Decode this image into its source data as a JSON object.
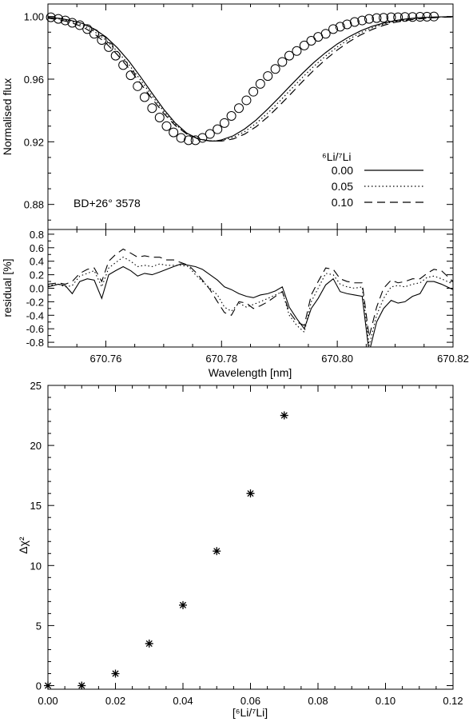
{
  "chart_data": [
    {
      "type": "scatter",
      "object_label": "BD+26° 3578",
      "ylabel": "Normalised flux",
      "xlabel": "",
      "xlim": [
        670.75,
        670.82
      ],
      "ylim": [
        0.864,
        1.008
      ],
      "yticks": [
        "0.88",
        "0.92",
        "0.96",
        "1.00"
      ],
      "xticks": [
        "670.76",
        "670.78",
        "670.80",
        "670.82"
      ],
      "show_x_tick_labels": false,
      "legend_placement": "middle-right",
      "legend_title": "⁶Li/⁷Li",
      "observed": {
        "x": [
          670.7505,
          670.7518,
          670.753,
          670.7542,
          670.7555,
          670.7568,
          670.758,
          670.7593,
          670.7605,
          670.7617,
          670.763,
          670.7643,
          670.7655,
          670.7667,
          670.768,
          670.7693,
          670.7705,
          670.7717,
          670.773,
          670.7743,
          670.7755,
          670.7767,
          670.778,
          670.7793,
          670.7805,
          670.7817,
          670.783,
          670.7843,
          670.7855,
          670.7867,
          670.788,
          670.7893,
          670.7905,
          670.7917,
          670.793,
          670.7943,
          670.7955,
          670.7967,
          670.798,
          670.7993,
          670.8005,
          670.8017,
          670.803,
          670.8043,
          670.8055,
          670.8068,
          670.808,
          670.8093,
          670.8105,
          670.8117,
          670.813,
          670.8143,
          670.8155,
          670.8167
        ],
        "y": [
          0.9995,
          0.9985,
          0.9975,
          0.996,
          0.9945,
          0.992,
          0.989,
          0.985,
          0.9805,
          0.975,
          0.969,
          0.9625,
          0.9555,
          0.9485,
          0.9415,
          0.9355,
          0.93,
          0.926,
          0.9225,
          0.921,
          0.921,
          0.9225,
          0.925,
          0.928,
          0.932,
          0.9365,
          0.9415,
          0.9465,
          0.952,
          0.957,
          0.962,
          0.9665,
          0.971,
          0.975,
          0.978,
          0.9815,
          0.9845,
          0.987,
          0.989,
          0.992,
          0.9935,
          0.995,
          0.9965,
          0.9975,
          0.9985,
          0.999,
          0.9992,
          0.9995,
          0.9995,
          0.9997,
          0.9997,
          0.9998,
          0.9999,
          1.0
        ]
      },
      "series": [
        {
          "name": "0.00",
          "style": "solid",
          "x": [
            670.75,
            670.752,
            670.754,
            670.756,
            670.758,
            670.76,
            670.762,
            670.764,
            670.766,
            670.768,
            670.77,
            670.772,
            670.774,
            670.776,
            670.778,
            670.779,
            670.78,
            670.782,
            670.784,
            670.786,
            670.788,
            670.79,
            670.792,
            670.794,
            670.796,
            670.798,
            670.8,
            670.802,
            670.804,
            670.806,
            670.808,
            670.81,
            670.812,
            670.814,
            670.816,
            670.818,
            670.82
          ],
          "y": [
            0.9995,
            0.9988,
            0.9975,
            0.9955,
            0.992,
            0.987,
            0.98,
            0.9715,
            0.9615,
            0.951,
            0.9408,
            0.932,
            0.9255,
            0.9218,
            0.9205,
            0.9205,
            0.9212,
            0.9238,
            0.9282,
            0.934,
            0.941,
            0.9485,
            0.9562,
            0.9638,
            0.9708,
            0.977,
            0.9825,
            0.987,
            0.9908,
            0.9937,
            0.9958,
            0.9974,
            0.9985,
            0.9992,
            0.9996,
            0.9998,
            0.9999
          ]
        },
        {
          "name": "0.05",
          "style": "dotted",
          "x": [
            670.75,
            670.752,
            670.754,
            670.756,
            670.758,
            670.76,
            670.762,
            670.764,
            670.766,
            670.768,
            670.77,
            670.772,
            670.774,
            670.776,
            670.778,
            670.779,
            670.78,
            670.782,
            670.784,
            670.786,
            670.788,
            670.79,
            670.792,
            670.794,
            670.796,
            670.798,
            670.8,
            670.802,
            670.804,
            670.806,
            670.808,
            670.81,
            670.812,
            670.814,
            670.816,
            670.818,
            670.82
          ],
          "y": [
            0.9992,
            0.9984,
            0.9969,
            0.9945,
            0.9905,
            0.985,
            0.9778,
            0.9692,
            0.9595,
            0.9493,
            0.9395,
            0.9312,
            0.9252,
            0.9218,
            0.9206,
            0.9205,
            0.9208,
            0.9228,
            0.9265,
            0.9318,
            0.9384,
            0.9458,
            0.9535,
            0.9612,
            0.9684,
            0.9748,
            0.9806,
            0.9855,
            0.9896,
            0.9928,
            0.9952,
            0.9969,
            0.9981,
            0.9989,
            0.9994,
            0.9997,
            0.9998
          ]
        },
        {
          "name": "0.10",
          "style": "dashed",
          "x": [
            670.75,
            670.752,
            670.754,
            670.756,
            670.758,
            670.76,
            670.762,
            670.764,
            670.766,
            670.768,
            670.77,
            670.772,
            670.774,
            670.776,
            670.778,
            670.779,
            670.78,
            670.782,
            670.784,
            670.786,
            670.788,
            670.79,
            670.792,
            670.794,
            670.796,
            670.798,
            670.8,
            670.802,
            670.804,
            670.806,
            670.808,
            670.81,
            670.812,
            670.814,
            670.816,
            670.818,
            670.82
          ],
          "y": [
            0.9989,
            0.9979,
            0.9962,
            0.9934,
            0.989,
            0.9831,
            0.9756,
            0.9669,
            0.9573,
            0.9475,
            0.9382,
            0.9304,
            0.9249,
            0.9218,
            0.9206,
            0.9205,
            0.9205,
            0.9218,
            0.9249,
            0.9297,
            0.9359,
            0.9431,
            0.9507,
            0.9585,
            0.9659,
            0.9726,
            0.9786,
            0.9838,
            0.9882,
            0.9917,
            0.9944,
            0.9963,
            0.9976,
            0.9985,
            0.9991,
            0.9995,
            0.9997
          ]
        }
      ]
    },
    {
      "type": "line",
      "ylabel": "residual [%]",
      "xlabel": "Wavelength [nm]",
      "xlim": [
        670.75,
        670.82
      ],
      "ylim": [
        -0.87,
        0.87
      ],
      "yticks": [
        "-0.8",
        "-0.6",
        "-0.4",
        "-0.2",
        "0.0",
        "0.2",
        "0.4",
        "0.6",
        "0.8"
      ],
      "xticks": [
        "670.76",
        "670.78",
        "670.80",
        "670.82"
      ],
      "series": [
        {
          "name": "0.00",
          "style": "solid",
          "x": [
            670.75,
            670.7518,
            670.753,
            670.7542,
            670.7555,
            670.7568,
            670.758,
            670.7593,
            670.7605,
            670.7617,
            670.763,
            670.7643,
            670.7655,
            670.7667,
            670.768,
            670.7693,
            670.7705,
            670.7717,
            670.773,
            670.7743,
            670.7755,
            670.7767,
            670.778,
            670.7793,
            670.7805,
            670.7817,
            670.783,
            670.7843,
            670.7855,
            670.7867,
            670.788,
            670.7893,
            670.7905,
            670.7917,
            670.793,
            670.7943,
            670.7955,
            670.7967,
            670.798,
            670.7993,
            670.8005,
            670.8017,
            670.803,
            670.8043,
            670.8055,
            670.8068,
            670.808,
            670.8093,
            670.8105,
            670.8117,
            670.813,
            670.8143,
            670.8155,
            670.8167,
            670.818,
            670.82
          ],
          "y": [
            0.02,
            0.06,
            0.04,
            -0.08,
            0.1,
            0.14,
            0.12,
            -0.15,
            0.2,
            0.26,
            0.32,
            0.26,
            0.18,
            0.22,
            0.2,
            0.24,
            0.28,
            0.32,
            0.36,
            0.34,
            0.32,
            0.28,
            0.2,
            0.12,
            0.02,
            -0.02,
            -0.08,
            -0.12,
            -0.14,
            -0.1,
            -0.08,
            -0.04,
            0.02,
            -0.28,
            -0.45,
            -0.6,
            -0.3,
            -0.15,
            0.05,
            0.14,
            -0.05,
            -0.08,
            -0.1,
            -0.12,
            -0.95,
            -0.5,
            -0.3,
            -0.18,
            -0.22,
            -0.2,
            -0.12,
            -0.08,
            0.1,
            0.1,
            0.06,
            -0.02
          ]
        },
        {
          "name": "0.05",
          "style": "dotted",
          "x": [
            670.75,
            670.7518,
            670.753,
            670.7542,
            670.7555,
            670.7568,
            670.758,
            670.7593,
            670.7605,
            670.7617,
            670.763,
            670.7643,
            670.7655,
            670.7667,
            670.768,
            670.7693,
            670.7705,
            670.7717,
            670.773,
            670.7743,
            670.7755,
            670.7767,
            670.778,
            670.7793,
            670.7805,
            670.7817,
            670.783,
            670.7843,
            670.7855,
            670.7867,
            670.788,
            670.7893,
            670.7905,
            670.7917,
            670.793,
            670.7943,
            670.7955,
            670.7967,
            670.798,
            670.7993,
            670.8005,
            670.8017,
            670.803,
            670.8043,
            670.8055,
            670.8068,
            670.808,
            670.8093,
            670.8105,
            670.8117,
            670.813,
            670.8143,
            670.8155,
            670.8167,
            670.818,
            670.82
          ],
          "y": [
            0.04,
            0.06,
            0.02,
            0.04,
            0.18,
            0.22,
            0.26,
            0.02,
            0.3,
            0.38,
            0.46,
            0.4,
            0.32,
            0.34,
            0.32,
            0.36,
            0.34,
            0.34,
            0.34,
            0.32,
            0.2,
            0.1,
            0.0,
            -0.1,
            -0.28,
            -0.34,
            -0.22,
            -0.28,
            -0.24,
            -0.2,
            -0.15,
            -0.1,
            -0.05,
            -0.4,
            -0.55,
            -0.65,
            -0.2,
            0.0,
            0.22,
            0.2,
            0.06,
            0.02,
            0.0,
            0.02,
            -0.85,
            -0.4,
            -0.15,
            0.02,
            0.04,
            0.02,
            0.06,
            0.08,
            0.16,
            0.18,
            0.14,
            0.06
          ]
        },
        {
          "name": "0.10",
          "style": "dashed",
          "x": [
            670.75,
            670.7518,
            670.753,
            670.7542,
            670.7555,
            670.7568,
            670.758,
            670.7593,
            670.7605,
            670.7617,
            670.763,
            670.7643,
            670.7655,
            670.7667,
            670.768,
            670.7693,
            670.7705,
            670.7717,
            670.773,
            670.7743,
            670.7755,
            670.7767,
            670.778,
            670.7793,
            670.7805,
            670.7817,
            670.783,
            670.7843,
            670.7855,
            670.7867,
            670.788,
            670.7893,
            670.7905,
            670.7917,
            670.793,
            670.7943,
            670.7955,
            670.7967,
            670.798,
            670.7993,
            670.8005,
            670.8017,
            670.803,
            670.8043,
            670.8055,
            670.8068,
            670.808,
            670.8093,
            670.8105,
            670.8117,
            670.813,
            670.8143,
            670.8155,
            670.8167,
            670.818,
            670.82
          ],
          "y": [
            0.06,
            0.08,
            0.06,
            0.1,
            0.22,
            0.28,
            0.3,
            0.1,
            0.4,
            0.5,
            0.58,
            0.52,
            0.46,
            0.48,
            0.46,
            0.46,
            0.42,
            0.42,
            0.38,
            0.34,
            0.24,
            0.12,
            -0.02,
            -0.2,
            -0.36,
            -0.4,
            -0.2,
            -0.22,
            -0.3,
            -0.26,
            -0.2,
            -0.12,
            -0.05,
            -0.35,
            -0.5,
            -0.55,
            -0.1,
            0.1,
            0.3,
            0.28,
            0.14,
            0.1,
            0.08,
            0.08,
            -0.72,
            -0.28,
            0.0,
            0.12,
            0.08,
            0.1,
            0.14,
            0.14,
            0.22,
            0.28,
            0.26,
            0.1
          ]
        }
      ]
    },
    {
      "type": "scatter",
      "xlabel": "[⁶Li/⁷Li]",
      "ylabel": "Δχ²",
      "xlim": [
        0.0,
        0.12
      ],
      "ylim": [
        -0.3,
        25
      ],
      "xticks": [
        "0.00",
        "0.02",
        "0.04",
        "0.06",
        "0.08",
        "0.10",
        "0.12"
      ],
      "yticks": [
        "0",
        "5",
        "10",
        "15",
        "20",
        "25"
      ],
      "marker": "asterisk",
      "x": [
        0.0,
        0.01,
        0.02,
        0.03,
        0.04,
        0.05,
        0.06,
        0.07
      ],
      "y": [
        0.0,
        0.0,
        1.0,
        3.5,
        6.7,
        11.2,
        16.0,
        22.5
      ]
    }
  ]
}
